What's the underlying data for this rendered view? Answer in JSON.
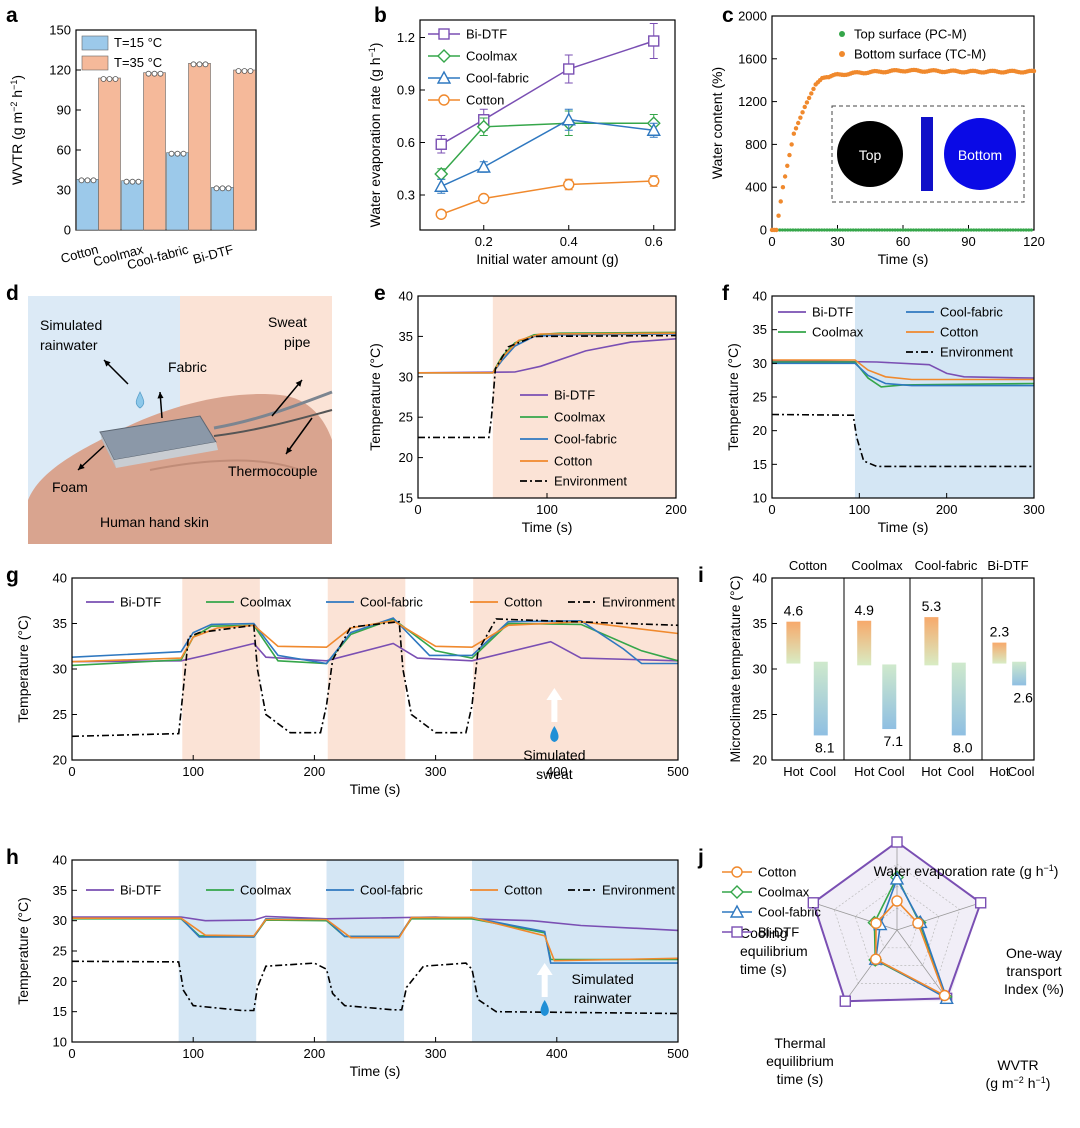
{
  "panel_letters": [
    "a",
    "b",
    "c",
    "d",
    "e",
    "f",
    "g",
    "h",
    "i",
    "j"
  ],
  "colors": {
    "bidtf": "#7a4fb3",
    "coolmax": "#35a64a",
    "coolfabric": "#2f78c0",
    "cotton": "#f0892d",
    "environment": "#000000",
    "bar_15": "#9cc9ea",
    "bar_35": "#f5b99a",
    "hot_shade": "#fbe3d6",
    "cold_shade": "#d4e6f4",
    "rain_shade": "#dceaf6"
  },
  "chart_data": [
    {
      "panel": "a",
      "type": "bar",
      "categories": [
        "Cotton",
        "Coolmax",
        "Cool-fabric",
        "Bi-DTF"
      ],
      "series": [
        {
          "name": "T=15 °C",
          "values": [
            38,
            37,
            58,
            32
          ]
        },
        {
          "name": "T=35 °C",
          "values": [
            114,
            118,
            125,
            120
          ]
        }
      ],
      "ylabel": "WVTR (g m−2 h−1)",
      "ylim": [
        0,
        150
      ],
      "yticks": [
        "0",
        "30",
        "60",
        "90",
        "120",
        "150"
      ],
      "legend": "top-left"
    },
    {
      "panel": "b",
      "type": "line",
      "x": [
        0.1,
        0.2,
        0.4,
        0.6
      ],
      "series": [
        {
          "name": "Bi-DTF",
          "values": [
            0.59,
            0.73,
            1.02,
            1.18
          ],
          "err": [
            0.05,
            0.06,
            0.08,
            0.1
          ]
        },
        {
          "name": "Coolmax",
          "values": [
            0.42,
            0.69,
            0.71,
            0.71
          ],
          "err": [
            0.03,
            0.05,
            0.07,
            0.05
          ]
        },
        {
          "name": "Cool-fabric",
          "values": [
            0.35,
            0.46,
            0.73,
            0.67
          ],
          "err": [
            0.04,
            0.03,
            0.06,
            0.04
          ]
        },
        {
          "name": "Cotton",
          "values": [
            0.19,
            0.28,
            0.36,
            0.38
          ],
          "err": [
            0.02,
            0.02,
            0.03,
            0.03
          ]
        }
      ],
      "xlabel": "Initial water amount (g)",
      "ylabel": "Water evaporation rate (g h−1)",
      "xlim": [
        0.05,
        0.65
      ],
      "ylim": [
        0.1,
        1.3
      ],
      "xticks": [
        "0.2",
        "0.4",
        "0.6"
      ],
      "yticks": [
        "0.3",
        "0.6",
        "0.9",
        "1.2"
      ],
      "legend": "top-left"
    },
    {
      "panel": "c",
      "type": "scatter",
      "series": [
        {
          "name": "Top surface (PC-M)",
          "description_values": "0 % throughout 0–120 s"
        },
        {
          "name": "Bottom surface (TC-M)",
          "plateau": 1480
        }
      ],
      "key_points": {
        "x": [
          0,
          2,
          5,
          10,
          15,
          20,
          23,
          30,
          40,
          60,
          90,
          120
        ],
        "y": [
          0,
          0,
          400,
          900,
          1150,
          1360,
          1420,
          1450,
          1470,
          1490,
          1480,
          1480
        ]
      },
      "xlabel": "Time (s)",
      "ylabel": "Water content (%)",
      "xlim": [
        0,
        120
      ],
      "ylim": [
        0,
        2000
      ],
      "xticks": [
        "0",
        "30",
        "60",
        "90",
        "120"
      ],
      "yticks": [
        "0",
        "400",
        "800",
        "1200",
        "1600",
        "2000"
      ],
      "inset_labels": [
        "Top",
        "Bottom"
      ],
      "legend": "top-right"
    },
    {
      "panel": "e",
      "type": "line",
      "series": [
        {
          "name": "Bi-DTF",
          "x": [
            0,
            75,
            95,
            130,
            165,
            200
          ],
          "values": [
            30.5,
            30.6,
            31.3,
            33.2,
            34.3,
            34.7
          ]
        },
        {
          "name": "Coolmax",
          "x": [
            0,
            58,
            65,
            75,
            90,
            110,
            200
          ],
          "values": [
            30.5,
            30.5,
            32.5,
            34.2,
            35.2,
            35.4,
            35.5
          ]
        },
        {
          "name": "Cool-fabric",
          "x": [
            0,
            58,
            65,
            75,
            90,
            110,
            200
          ],
          "values": [
            30.5,
            30.5,
            32.0,
            33.8,
            35.0,
            35.2,
            35.3
          ]
        },
        {
          "name": "Cotton",
          "x": [
            0,
            58,
            66,
            78,
            95,
            200
          ],
          "values": [
            30.5,
            30.5,
            32.5,
            34.5,
            35.3,
            35.4
          ]
        },
        {
          "name": "Environment",
          "x": [
            0,
            55,
            57,
            60,
            70,
            90,
            200
          ],
          "values": [
            22.5,
            22.5,
            25,
            31,
            33.7,
            35.0,
            35.1
          ]
        }
      ],
      "xlabel": "Time (s)",
      "ylabel": "Temperature (°C)",
      "xlim": [
        0,
        200
      ],
      "ylim": [
        15,
        40
      ],
      "xticks": [
        "0",
        "100",
        "200"
      ],
      "yticks": [
        "15",
        "20",
        "25",
        "30",
        "35",
        "40"
      ],
      "legend": "bottom-right"
    },
    {
      "panel": "f",
      "type": "line",
      "series": [
        {
          "name": "Bi-DTF",
          "x": [
            0,
            120,
            180,
            200,
            220,
            300
          ],
          "values": [
            30.4,
            30.2,
            29.8,
            28.5,
            28.0,
            27.8
          ]
        },
        {
          "name": "Coolmax",
          "x": [
            0,
            95,
            110,
            125,
            150,
            300
          ],
          "values": [
            30.2,
            30.2,
            27.8,
            26.5,
            26.8,
            27.0
          ]
        },
        {
          "name": "Cool-fabric",
          "x": [
            0,
            95,
            110,
            130,
            160,
            300
          ],
          "values": [
            30.0,
            30.0,
            28.2,
            27.0,
            26.7,
            26.7
          ]
        },
        {
          "name": "Cotton",
          "x": [
            0,
            95,
            110,
            130,
            160,
            300
          ],
          "values": [
            30.5,
            30.5,
            29.0,
            28.0,
            27.6,
            27.6
          ]
        },
        {
          "name": "Environment",
          "x": [
            0,
            93,
            97,
            105,
            120,
            300
          ],
          "values": [
            22.4,
            22.3,
            19,
            15.5,
            14.7,
            14.7
          ]
        }
      ],
      "xlabel": "Time (s)",
      "ylabel": "Temperature (°C)",
      "xlim": [
        0,
        300
      ],
      "ylim": [
        10,
        40
      ],
      "xticks": [
        "0",
        "100",
        "200",
        "300"
      ],
      "yticks": [
        "10",
        "15",
        "20",
        "25",
        "30",
        "35",
        "40"
      ],
      "legend": "top"
    },
    {
      "panel": "g",
      "type": "line",
      "series": [
        {
          "name": "Bi-DTF",
          "x": [
            0,
            90,
            110,
            150,
            160,
            210,
            265,
            285,
            330,
            395,
            420,
            500
          ],
          "values": [
            30.8,
            30.9,
            31.5,
            32.8,
            31.3,
            30.9,
            32.8,
            31.2,
            30.9,
            33.0,
            31.2,
            30.9
          ]
        },
        {
          "name": "Coolmax",
          "x": [
            0,
            90,
            100,
            115,
            150,
            170,
            210,
            230,
            265,
            300,
            330,
            360,
            420,
            470,
            500
          ],
          "values": [
            30.4,
            31.0,
            33.5,
            34.7,
            34.8,
            30.9,
            30.6,
            33.8,
            35.5,
            32.0,
            31.2,
            35.0,
            34.9,
            32.0,
            30.9
          ]
        },
        {
          "name": "Cool-fabric",
          "x": [
            0,
            90,
            100,
            115,
            150,
            170,
            210,
            230,
            265,
            295,
            330,
            360,
            420,
            455,
            470,
            500
          ],
          "values": [
            31.3,
            31.9,
            34.0,
            34.9,
            35.0,
            31.5,
            30.6,
            34.0,
            35.6,
            31.5,
            31.5,
            35.2,
            35.3,
            32.2,
            30.6,
            30.6
          ]
        },
        {
          "name": "Cotton",
          "x": [
            0,
            90,
            100,
            120,
            150,
            170,
            210,
            230,
            265,
            300,
            330,
            360,
            420,
            500
          ],
          "values": [
            30.8,
            31.2,
            33.5,
            34.5,
            34.8,
            32.5,
            32.4,
            34.5,
            35.3,
            32.5,
            32.4,
            34.8,
            35.2,
            33.9
          ]
        },
        {
          "name": "Environment",
          "x": [
            0,
            88,
            92,
            96,
            105,
            150,
            153,
            160,
            180,
            205,
            210,
            215,
            230,
            270,
            273,
            280,
            300,
            325,
            330,
            335,
            350,
            500
          ],
          "values": [
            22.6,
            22.9,
            28,
            33.5,
            34.0,
            34.8,
            30,
            25,
            23.0,
            23.0,
            26,
            31,
            34.6,
            35.2,
            30,
            25,
            23.0,
            23.0,
            26,
            32,
            35.5,
            34.8
          ]
        }
      ],
      "annotation": "Simulated sweat",
      "xlabel": "Time (s)",
      "ylabel": "Temperature (°C)",
      "xlim": [
        0,
        500
      ],
      "ylim": [
        20,
        40
      ],
      "xticks": [
        "0",
        "100",
        "200",
        "300",
        "400",
        "500"
      ],
      "yticks": [
        "20",
        "25",
        "30",
        "35",
        "40"
      ],
      "legend": "top"
    },
    {
      "panel": "h",
      "type": "line",
      "series": [
        {
          "name": "Bi-DTF",
          "x": [
            0,
            90,
            110,
            150,
            160,
            210,
            300,
            330,
            380,
            420,
            500
          ],
          "values": [
            30.6,
            30.6,
            30.0,
            30.1,
            30.7,
            30.3,
            30.6,
            30.3,
            30.0,
            29.2,
            28.4
          ]
        },
        {
          "name": "Coolmax",
          "x": [
            0,
            90,
            105,
            150,
            160,
            210,
            225,
            270,
            280,
            330,
            390,
            395,
            500
          ],
          "values": [
            30.3,
            30.3,
            27.5,
            27.3,
            30.1,
            30.0,
            27.4,
            27.4,
            30.3,
            30.3,
            28.0,
            23.6,
            23.6
          ]
        },
        {
          "name": "Cool-fabric",
          "x": [
            0,
            90,
            105,
            150,
            160,
            210,
            225,
            270,
            280,
            330,
            390,
            395,
            500
          ],
          "values": [
            30.4,
            30.4,
            27.3,
            27.3,
            30.3,
            30.2,
            27.4,
            27.4,
            30.5,
            30.5,
            28.2,
            23.0,
            23.0
          ]
        },
        {
          "name": "Cotton",
          "x": [
            0,
            90,
            110,
            150,
            160,
            210,
            230,
            270,
            280,
            330,
            390,
            398,
            500
          ],
          "values": [
            30.4,
            30.4,
            27.6,
            27.5,
            30.2,
            30.2,
            27.2,
            27.2,
            30.5,
            30.5,
            27.5,
            23.4,
            23.8
          ]
        },
        {
          "name": "Environment",
          "x": [
            0,
            88,
            92,
            100,
            140,
            150,
            153,
            160,
            200,
            210,
            215,
            225,
            265,
            272,
            276,
            290,
            325,
            330,
            335,
            350,
            500
          ],
          "values": [
            23.3,
            23.2,
            18.5,
            16.0,
            15.2,
            15.2,
            19,
            22.5,
            23.0,
            22.0,
            18,
            16.0,
            15.3,
            15.3,
            19,
            22.5,
            23.0,
            22.0,
            17,
            15.0,
            14.7
          ]
        }
      ],
      "annotation": "Simulated rainwater",
      "xlabel": "Time (s)",
      "ylabel": "Temperature (°C)",
      "xlim": [
        0,
        500
      ],
      "ylim": [
        10,
        40
      ],
      "xticks": [
        "0",
        "100",
        "200",
        "300",
        "400",
        "500"
      ],
      "yticks": [
        "10",
        "15",
        "20",
        "25",
        "30",
        "35",
        "40"
      ],
      "legend": "top"
    },
    {
      "panel": "i",
      "type": "bar",
      "categories": [
        "Cotton",
        "Coolmax",
        "Cool-fabric",
        "Bi-DTF"
      ],
      "sub_labels": [
        "Hot",
        "Cool"
      ],
      "series": [
        {
          "name": "Hot",
          "base": [
            30.6,
            30.4,
            30.4,
            30.6
          ],
          "top": [
            35.2,
            35.3,
            35.7,
            32.9
          ],
          "labels": [
            "4.6",
            "4.9",
            "5.3",
            "2.3"
          ]
        },
        {
          "name": "Cool",
          "base": [
            30.8,
            30.5,
            30.7,
            30.8
          ],
          "bottom": [
            22.7,
            23.4,
            22.7,
            28.2
          ],
          "labels": [
            "8.1",
            "7.1",
            "8.0",
            "2.6"
          ]
        }
      ],
      "ylabel": "Microclimate temperature (°C)",
      "ylim": [
        20,
        40
      ],
      "yticks": [
        "20",
        "25",
        "30",
        "35",
        "40"
      ]
    },
    {
      "panel": "j",
      "type": "radar",
      "axes": [
        {
          "label": [
            "Water evaporation rate (g h−1)"
          ]
        },
        {
          "label": [
            "One-way",
            "transport",
            "Index (%)"
          ]
        },
        {
          "label": [
            "WVTR",
            "(g m−2 h−1)"
          ]
        },
        {
          "label": [
            "Thermal",
            "equilibrium",
            "time (s)"
          ]
        },
        {
          "label": [
            "Cooling",
            "equilibrium",
            "time (s)"
          ]
        }
      ],
      "series": [
        {
          "name": "Cotton",
          "values": [
            0.33,
            0.25,
            0.92,
            0.41,
            0.25
          ]
        },
        {
          "name": "Coolmax",
          "values": [
            0.6,
            0.27,
            0.94,
            0.42,
            0.27
          ]
        },
        {
          "name": "Cool-fabric",
          "values": [
            0.58,
            0.28,
            0.96,
            0.41,
            0.2
          ]
        },
        {
          "name": "Bi-DTF",
          "values": [
            1.0,
            1.0,
            0.96,
            1.0,
            1.0
          ]
        }
      ],
      "legend": "top-left"
    }
  ],
  "panel_d": {
    "labels": [
      "Simulated",
      "rainwater",
      "Fabric",
      "Sweat",
      "pipe",
      "Foam",
      "Thermocouple",
      "Human hand skin"
    ]
  }
}
